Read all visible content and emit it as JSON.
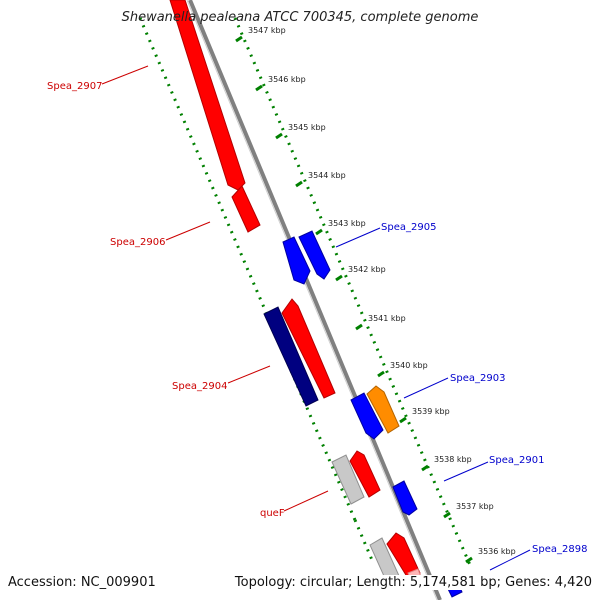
{
  "title": "Shewanella pealeana ATCC 700345, complete genome",
  "accession": "Accession: NC_009901",
  "topology": "Topology: circular; Length: 5,174,581 bp; Genes: 4,420",
  "colors": {
    "forward": "#ff0000",
    "reverse": "#0000ff",
    "dark_reverse": "#000080",
    "rna": "#ff8c00",
    "pseudo": "#c8c8c8",
    "backbone": "#808080",
    "ticks": "#008000",
    "label_red": "#cc0000",
    "label_blue": "#0000cc"
  },
  "scale_labels": [
    "3547 kbp",
    "3546 kbp",
    "3545 kbp",
    "3544 kbp",
    "3543 kbp",
    "3542 kbp",
    "3541 kbp",
    "3540 kbp",
    "3539 kbp",
    "3538 kbp",
    "3537 kbp",
    "3536 kbp"
  ],
  "gene_labels": [
    {
      "text": "Spea_2907",
      "strand": "forward"
    },
    {
      "text": "Spea_2906",
      "strand": "forward"
    },
    {
      "text": "Spea_2905",
      "strand": "reverse"
    },
    {
      "text": "Spea_2904",
      "strand": "forward"
    },
    {
      "text": "Spea_2903",
      "strand": "reverse"
    },
    {
      "text": "Spea_2901",
      "strand": "reverse"
    },
    {
      "text": "queF",
      "strand": "forward"
    },
    {
      "text": "Spea_2898",
      "strand": "reverse"
    }
  ]
}
